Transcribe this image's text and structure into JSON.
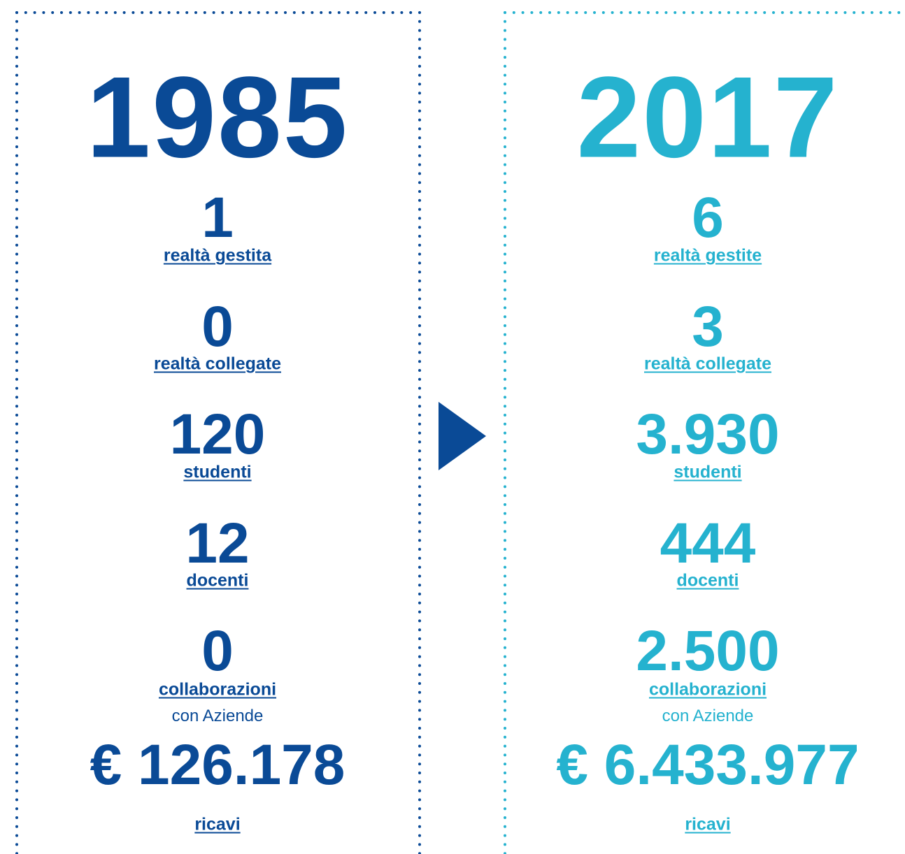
{
  "columns": [
    {
      "year": "1985",
      "items": [
        {
          "value": "1",
          "label": "realtà gestita"
        },
        {
          "value": "0",
          "label": "realtà collegate"
        },
        {
          "value": "120",
          "label": "studenti"
        },
        {
          "value": "12",
          "label": "docenti"
        },
        {
          "value": "0",
          "label": "collaborazioni",
          "note": "con Aziende"
        },
        {
          "value": "€ 126.178",
          "label": "ricavi"
        }
      ]
    },
    {
      "year": "2017",
      "items": [
        {
          "value": "6",
          "label": "realtà gestite"
        },
        {
          "value": "3",
          "label": "realtà collegate"
        },
        {
          "value": "3.930",
          "label": "studenti"
        },
        {
          "value": "444",
          "label": "docenti"
        },
        {
          "value": "2.500",
          "label": "collaborazioni",
          "note": "con Aziende"
        },
        {
          "value": "€ 6.433.977",
          "label": "ricavi"
        }
      ]
    }
  ]
}
